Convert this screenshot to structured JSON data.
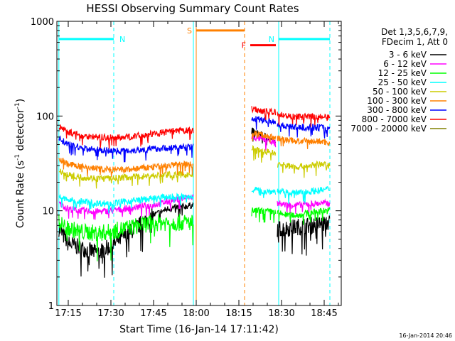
{
  "chart_data": {
    "type": "line",
    "title": "HESSI Observing Summary Count Rates",
    "xlabel": "Start Time (16-Jan-14 17:11:42)",
    "ylabel_main": "Count Rate (s",
    "ylabel_sup1": "-1",
    "ylabel_mid": " detector",
    "ylabel_sup2": "-1",
    "ylabel_end": ")",
    "y_scale": "log",
    "ylim": [
      1,
      1000
    ],
    "xlim": [
      "17:11",
      "18:51"
    ],
    "x_ticks": [
      "17:15",
      "17:30",
      "17:45",
      "18:00",
      "18:15",
      "18:30",
      "18:45"
    ],
    "y_ticks": [
      "1",
      "10",
      "100",
      "1000"
    ],
    "legend_header": [
      "Det 1,3,5,6,7,9,",
      "FDecim 1, Att 0"
    ],
    "footer": "16-Jan-2014 20:46",
    "series": [
      {
        "name": "3 - 6 keV",
        "color": "#000000",
        "segments": [
          {
            "x": [
              "17:11:42",
              "17:15",
              "17:20",
              "17:25",
              "17:30",
              "17:35",
              "17:40",
              "17:45",
              "17:50",
              "17:55",
              "17:59"
            ],
            "y": [
              6.5,
              4.5,
              4,
              3.6,
              4.2,
              5.5,
              7,
              9,
              10.5,
              11,
              11.5
            ]
          },
          {
            "x": [
              "18:19:30",
              "18:22",
              "18:25",
              "18:27",
              "18:28"
            ],
            "y": [
              70,
              65,
              60,
              55,
              50
            ]
          },
          {
            "x": [
              "18:28:30",
              "18:32",
              "18:36",
              "18:40",
              "18:44",
              "18:47"
            ],
            "y": [
              6.5,
              6.5,
              6.8,
              7,
              7.3,
              7.5
            ]
          }
        ]
      },
      {
        "name": "6 - 12 keV",
        "color": "#ff00ff",
        "segments": [
          {
            "x": [
              "17:11:42",
              "17:15",
              "17:20",
              "17:25",
              "17:30",
              "17:35",
              "17:40",
              "17:45",
              "17:50",
              "17:55",
              "17:59"
            ],
            "y": [
              12,
              10.5,
              10,
              9.8,
              10,
              10.5,
              11,
              11.5,
              12.5,
              13.5,
              14
            ]
          },
          {
            "x": [
              "18:19:30",
              "18:22",
              "18:25",
              "18:27",
              "18:28"
            ],
            "y": [
              60,
              58,
              56,
              54,
              50
            ]
          },
          {
            "x": [
              "18:28:30",
              "18:32",
              "18:36",
              "18:40",
              "18:44",
              "18:47"
            ],
            "y": [
              12,
              11.5,
              11.5,
              11.8,
              12,
              12
            ]
          }
        ]
      },
      {
        "name": "12 - 25 keV",
        "color": "#00ff00",
        "segments": [
          {
            "x": [
              "17:11:42",
              "17:15",
              "17:20",
              "17:25",
              "17:30",
              "17:35",
              "17:40",
              "17:45",
              "17:50",
              "17:55",
              "17:59"
            ],
            "y": [
              7.5,
              6.5,
              6,
              5.8,
              6,
              6.5,
              7,
              7.5,
              7.5,
              7.5,
              7.5
            ]
          },
          {
            "x": [
              "18:19:30",
              "18:22",
              "18:25",
              "18:27",
              "18:28"
            ],
            "y": [
              10,
              10,
              9.8,
              9.8,
              9.5
            ]
          },
          {
            "x": [
              "18:28:30",
              "18:32",
              "18:36",
              "18:40",
              "18:44",
              "18:47"
            ],
            "y": [
              9.5,
              9,
              9,
              9.5,
              10,
              10
            ]
          }
        ]
      },
      {
        "name": "25 - 50 keV",
        "color": "#00ffff",
        "segments": [
          {
            "x": [
              "17:11:42",
              "17:15",
              "17:20",
              "17:25",
              "17:30",
              "17:35",
              "17:40",
              "17:45",
              "17:50",
              "17:55",
              "17:59"
            ],
            "y": [
              14,
              13,
              12.5,
              12,
              12,
              12.5,
              13,
              13.5,
              14,
              14,
              14
            ]
          },
          {
            "x": [
              "18:19:30",
              "18:22",
              "18:25",
              "18:27",
              "18:28"
            ],
            "y": [
              17,
              16.5,
              16,
              16,
              16
            ]
          },
          {
            "x": [
              "18:28:30",
              "18:32",
              "18:36",
              "18:40",
              "18:44",
              "18:47"
            ],
            "y": [
              16,
              15.5,
              15.5,
              16,
              16.5,
              17
            ]
          }
        ]
      },
      {
        "name": "50 - 100 keV",
        "color": "#cccc00",
        "segments": [
          {
            "x": [
              "17:11:42",
              "17:15",
              "17:20",
              "17:25",
              "17:30",
              "17:35",
              "17:40",
              "17:45",
              "17:50",
              "17:55",
              "17:59"
            ],
            "y": [
              27,
              24,
              22.5,
              22,
              22,
              22.5,
              23,
              23.5,
              24,
              24,
              24
            ]
          },
          {
            "x": [
              "18:19:30",
              "18:22",
              "18:25",
              "18:27",
              "18:28"
            ],
            "y": [
              45,
              43,
              42,
              41,
              40
            ]
          },
          {
            "x": [
              "18:28:30",
              "18:32",
              "18:36",
              "18:40",
              "18:44",
              "18:47"
            ],
            "y": [
              31,
              30,
              29,
              30,
              31,
              30
            ]
          }
        ]
      },
      {
        "name": "100 - 300 keV",
        "color": "#ff8000",
        "segments": [
          {
            "x": [
              "17:11:42",
              "17:15",
              "17:20",
              "17:25",
              "17:30",
              "17:35",
              "17:40",
              "17:45",
              "17:50",
              "17:55",
              "17:59"
            ],
            "y": [
              36,
              31,
              29,
              28,
              27,
              27,
              28,
              29,
              30,
              31,
              31
            ]
          },
          {
            "x": [
              "18:19:30",
              "18:22",
              "18:25",
              "18:27",
              "18:28"
            ],
            "y": [
              66,
              64,
              62,
              60,
              58
            ]
          },
          {
            "x": [
              "18:28:30",
              "18:32",
              "18:36",
              "18:40",
              "18:44",
              "18:47"
            ],
            "y": [
              58,
              56,
              54,
              54,
              54,
              52
            ]
          }
        ]
      },
      {
        "name": "300 - 800 keV",
        "color": "#0000ff",
        "segments": [
          {
            "x": [
              "17:11:42",
              "17:15",
              "17:20",
              "17:25",
              "17:30",
              "17:35",
              "17:40",
              "17:45",
              "17:50",
              "17:55",
              "17:59"
            ],
            "y": [
              58,
              50,
              46,
              44,
              43,
              43,
              44,
              45,
              46,
              47,
              47
            ]
          },
          {
            "x": [
              "18:19:30",
              "18:22",
              "18:25",
              "18:27",
              "18:28"
            ],
            "y": [
              95,
              92,
              90,
              88,
              86
            ]
          },
          {
            "x": [
              "18:28:30",
              "18:32",
              "18:36",
              "18:40",
              "18:44",
              "18:47"
            ],
            "y": [
              82,
              78,
              76,
              76,
              76,
              74
            ]
          }
        ]
      },
      {
        "name": "800 - 7000 keV",
        "color": "#ff0000",
        "segments": [
          {
            "x": [
              "17:11:42",
              "17:15",
              "17:20",
              "17:25",
              "17:30",
              "17:35",
              "17:40",
              "17:45",
              "17:50",
              "17:55",
              "17:59"
            ],
            "y": [
              78,
              68,
              62,
              60,
              59,
              60,
              62,
              65,
              68,
              70,
              70
            ]
          },
          {
            "x": [
              "18:19:30",
              "18:22",
              "18:25",
              "18:27",
              "18:28"
            ],
            "y": [
              120,
              115,
              112,
              110,
              108
            ]
          },
          {
            "x": [
              "18:28:30",
              "18:32",
              "18:36",
              "18:40",
              "18:44",
              "18:47"
            ],
            "y": [
              105,
              100,
              98,
              98,
              98,
              95
            ]
          }
        ]
      },
      {
        "name": "7000 - 20000 keV",
        "color": "#808000",
        "segments": []
      }
    ],
    "attenuator_bars": [
      {
        "label": "N",
        "color": "#00ffff",
        "level": 650,
        "x": [
          "17:11:42",
          "17:31"
        ]
      },
      {
        "label": "N",
        "color": "#00ffff",
        "level": 650,
        "x": [
          "18:29",
          "18:47"
        ]
      },
      {
        "label": "S",
        "color": "#ff8000",
        "level": 800,
        "x": [
          "18:00",
          "18:17"
        ]
      },
      {
        "label": "F",
        "color": "#ff0000",
        "level": 560,
        "x": [
          "18:19",
          "18:28"
        ]
      }
    ],
    "vertical_markers": [
      {
        "x": "17:11:42",
        "color": "#00ffff",
        "style": "solid"
      },
      {
        "x": "17:31",
        "color": "#00ffff",
        "style": "dashed"
      },
      {
        "x": "17:59",
        "color": "#00ffff",
        "style": "solid"
      },
      {
        "x": "18:00",
        "color": "#ff8000",
        "style": "solid"
      },
      {
        "x": "18:17",
        "color": "#ff8000",
        "style": "dashed"
      },
      {
        "x": "18:29",
        "color": "#00ffff",
        "style": "solid"
      },
      {
        "x": "18:47",
        "color": "#00ffff",
        "style": "dashed"
      }
    ]
  }
}
